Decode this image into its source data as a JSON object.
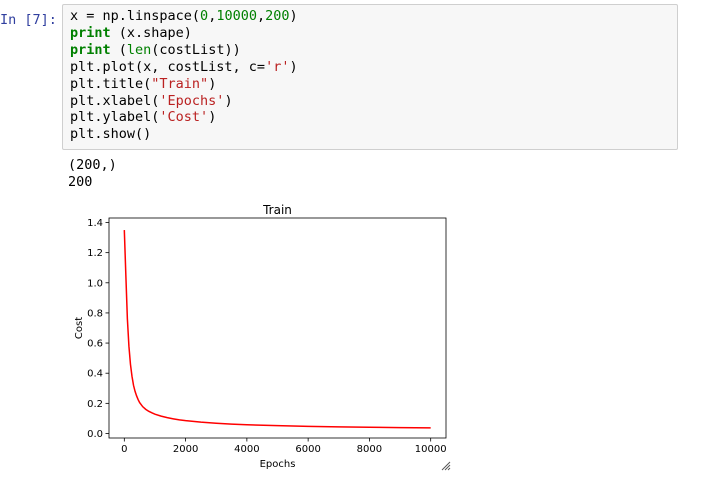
{
  "cell": {
    "prompt": "In [7]:",
    "code_lines": [
      "x = np.linspace(0,10000,200)",
      "print (x.shape)",
      "print (len(costList))",
      "plt.plot(x, costList, c='r')",
      "plt.title(\"Train\")",
      "plt.xlabel('Epochs')",
      "plt.ylabel('Cost')",
      "plt.show()"
    ],
    "output_lines": [
      "(200,)",
      "200"
    ]
  },
  "chart_data": {
    "type": "line",
    "title": "Train",
    "xlabel": "Epochs",
    "ylabel": "Cost",
    "xlim": [
      -500,
      10500
    ],
    "ylim": [
      -0.03,
      1.43
    ],
    "xticks": [
      0,
      2000,
      4000,
      6000,
      8000,
      10000
    ],
    "yticks": [
      0.0,
      0.2,
      0.4,
      0.6,
      0.8,
      1.0,
      1.2,
      1.4
    ],
    "ytick_labels": [
      "0.0",
      "0.2",
      "0.4",
      "0.6",
      "0.8",
      "1.0",
      "1.2",
      "1.4"
    ],
    "line_color": "#ff0000",
    "series": [
      {
        "x": [
          0,
          50,
          100,
          150,
          200,
          250,
          300,
          350,
          400,
          450,
          500,
          600,
          700,
          800,
          900,
          1000,
          1200,
          1400,
          1600,
          1800,
          2000,
          2500,
          3000,
          3500,
          4000,
          5000,
          6000,
          7000,
          8000,
          9000,
          10000
        ],
        "y": [
          1.35,
          1.05,
          0.76,
          0.58,
          0.46,
          0.38,
          0.32,
          0.28,
          0.25,
          0.225,
          0.205,
          0.178,
          0.16,
          0.147,
          0.137,
          0.128,
          0.115,
          0.105,
          0.097,
          0.09,
          0.085,
          0.075,
          0.068,
          0.062,
          0.058,
          0.052,
          0.047,
          0.044,
          0.041,
          0.039,
          0.037
        ]
      }
    ]
  }
}
